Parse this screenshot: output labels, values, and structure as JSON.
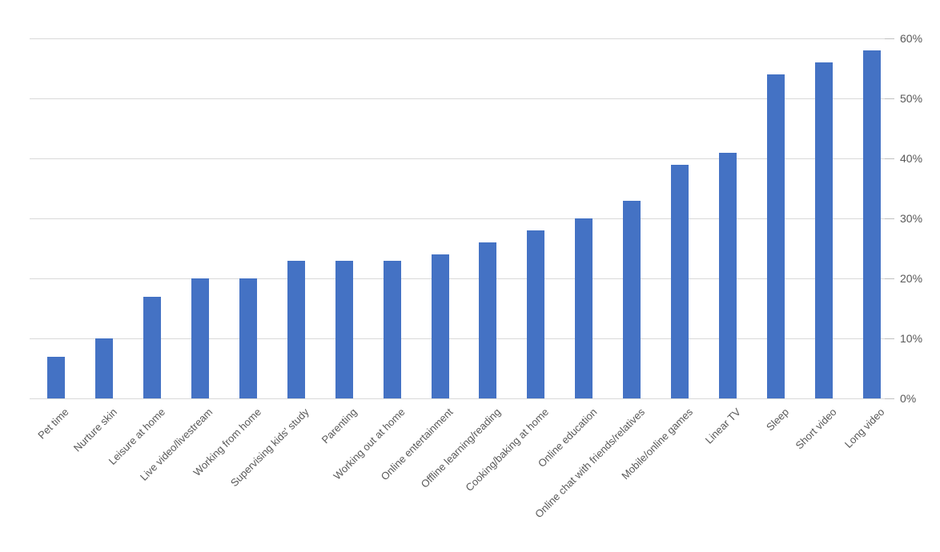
{
  "chart_data": {
    "type": "bar",
    "title": "",
    "xlabel": "",
    "ylabel": "",
    "unit": "%",
    "categories": [
      "Pet time",
      "Nurture skin",
      "Leisure at home",
      "Live video/livestream",
      "Working from home",
      "Supervising kids' study",
      "Parenting",
      "Working out at home",
      "Online entertainment",
      "Offline learning/reading",
      "Cooking/baking at home",
      "Online education",
      "Online chat with friends/relatives",
      "Mobile/online games",
      "Linear TV",
      "Sleep",
      "Short video",
      "Long video"
    ],
    "values": [
      7,
      10,
      17,
      20,
      20,
      23,
      23,
      23,
      24,
      26,
      28,
      30,
      33,
      39,
      41,
      54,
      56,
      58
    ],
    "ylim": [
      0,
      60
    ],
    "ytick_step": 10,
    "ytick_labels": [
      "0%",
      "10%",
      "20%",
      "30%",
      "40%",
      "50%",
      "60%"
    ],
    "yaxis_side": "right",
    "grid": true,
    "legend": "none",
    "colors": {
      "bar": "#4472c4",
      "gridline": "#d9d9d9",
      "tick": "#bfbfbf",
      "label": "#595959",
      "background": "#ffffff"
    }
  }
}
